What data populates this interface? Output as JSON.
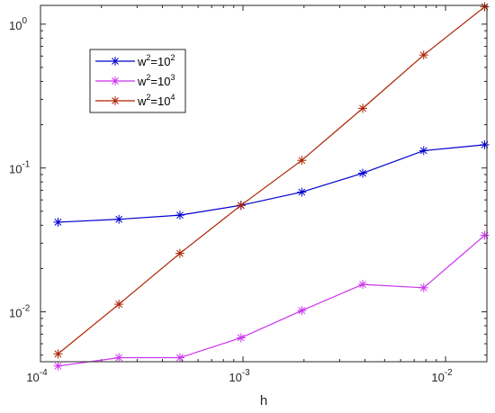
{
  "chart_data": {
    "type": "line",
    "title": "",
    "xlabel": "h",
    "ylabel": "",
    "xscale": "log",
    "yscale": "log",
    "xlim": [
      0.0001,
      0.016
    ],
    "ylim": [
      0.0045,
      1.35
    ],
    "grid": false,
    "legend_position": "top-left",
    "x": [
      0.000122,
      0.000244,
      0.000488,
      0.000977,
      0.00195,
      0.0039,
      0.0078,
      0.0156
    ],
    "series": [
      {
        "name": "w2=102",
        "color": "#0000cc",
        "marker": "asterisk",
        "values": [
          0.042,
          0.044,
          0.047,
          0.055,
          0.068,
          0.092,
          0.132,
          0.145
        ]
      },
      {
        "name": "w2=103",
        "color": "#cc33ee",
        "marker": "asterisk",
        "values": [
          0.0042,
          0.0048,
          0.0048,
          0.0066,
          0.0102,
          0.0155,
          0.0147,
          0.034
        ]
      },
      {
        "name": "w2=104",
        "color": "#aa2200",
        "marker": "asterisk",
        "values": [
          0.0051,
          0.0113,
          0.0255,
          0.055,
          0.113,
          0.26,
          0.61,
          1.32
        ]
      }
    ],
    "x_ticks": [
      {
        "value": 0.0001,
        "base": "10",
        "exp": "-4"
      },
      {
        "value": 0.001,
        "base": "10",
        "exp": "-3"
      },
      {
        "value": 0.01,
        "base": "10",
        "exp": "-2"
      }
    ],
    "y_ticks": [
      {
        "value": 0.01,
        "base": "10",
        "exp": "-2"
      },
      {
        "value": 0.1,
        "base": "10",
        "exp": "-1"
      },
      {
        "value": 1,
        "base": "10",
        "exp": "0"
      }
    ],
    "legend_labels": [
      {
        "w": "w",
        "wexp": "2",
        "eq": "=10",
        "exp": "2"
      },
      {
        "w": "w",
        "wexp": "2",
        "eq": "=10",
        "exp": "3"
      },
      {
        "w": "w",
        "wexp": "2",
        "eq": "=10",
        "exp": "4"
      }
    ]
  }
}
